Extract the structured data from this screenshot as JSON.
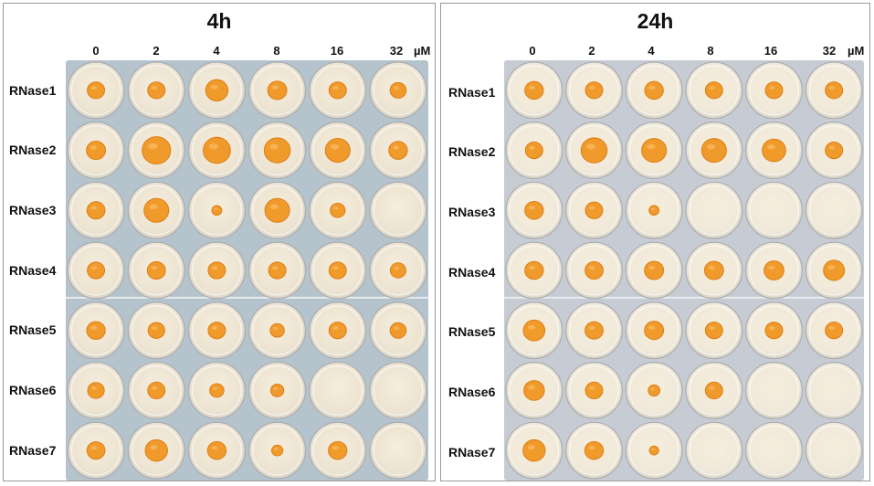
{
  "unit": "µM",
  "concentrations": [
    "0",
    "2",
    "4",
    "8",
    "16",
    "32"
  ],
  "rows": [
    "RNase1",
    "RNase2",
    "RNase3",
    "RNase4",
    "RNase5",
    "RNase6",
    "RNase7"
  ],
  "panels": [
    {
      "title": "4h",
      "plate_color": "#b5c3cd",
      "well_fill": "#ece3d1",
      "growth": [
        [
          0.55,
          0.55,
          0.75,
          0.62,
          0.55,
          0.5
        ],
        [
          0.62,
          1.0,
          0.95,
          0.9,
          0.85,
          0.6
        ],
        [
          0.58,
          0.85,
          0.25,
          0.85,
          0.45,
          0.0
        ],
        [
          0.55,
          0.58,
          0.55,
          0.55,
          0.55,
          0.48
        ],
        [
          0.6,
          0.52,
          0.55,
          0.42,
          0.55,
          0.5
        ],
        [
          0.52,
          0.55,
          0.42,
          0.38,
          0.0,
          0.0
        ],
        [
          0.58,
          0.75,
          0.6,
          0.3,
          0.6,
          0.0
        ]
      ]
    },
    {
      "title": "24h",
      "plate_color": "#c7ccd4",
      "well_fill": "#f0e9d9",
      "growth": [
        [
          0.6,
          0.55,
          0.6,
          0.55,
          0.55,
          0.55
        ],
        [
          0.55,
          0.9,
          0.85,
          0.85,
          0.8,
          0.55
        ],
        [
          0.6,
          0.55,
          0.25,
          0.0,
          0.0,
          0.0
        ],
        [
          0.6,
          0.58,
          0.62,
          0.62,
          0.65,
          0.7
        ],
        [
          0.72,
          0.58,
          0.62,
          0.55,
          0.55,
          0.55
        ],
        [
          0.68,
          0.55,
          0.32,
          0.55,
          0.0,
          0.0
        ],
        [
          0.75,
          0.6,
          0.22,
          0.0,
          0.0,
          0.0
        ]
      ]
    }
  ]
}
